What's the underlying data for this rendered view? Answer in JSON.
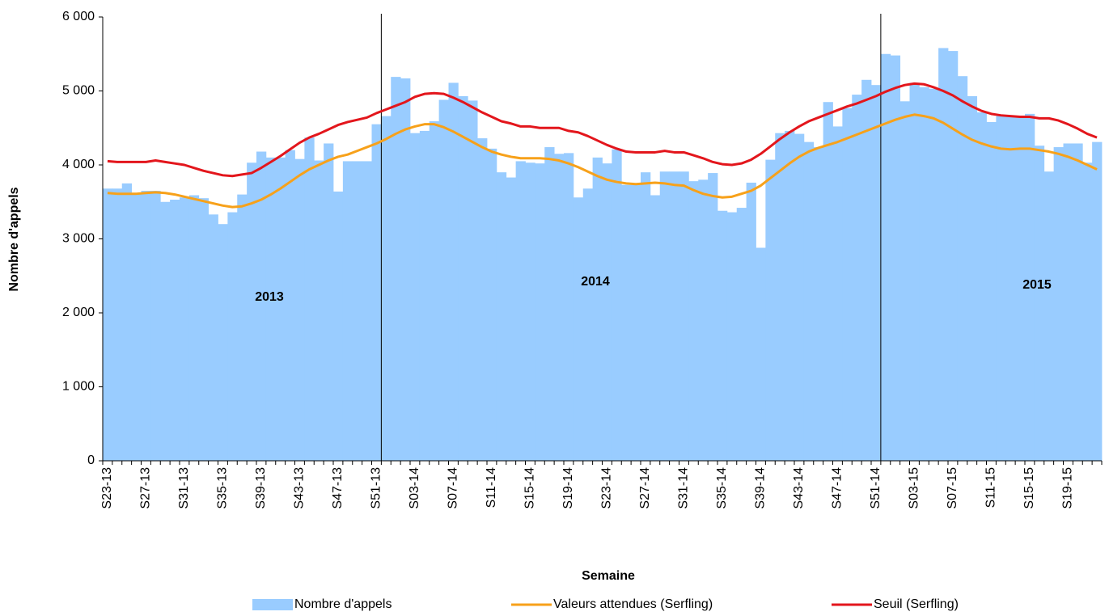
{
  "chart_data": {
    "type": "bar",
    "x_label": "Semaine",
    "y_label": "Nombre d'appels",
    "categories": [
      "S23-13",
      null,
      null,
      null,
      "S27-13",
      null,
      null,
      null,
      "S31-13",
      null,
      null,
      null,
      "S35-13",
      null,
      null,
      null,
      "S39-13",
      null,
      null,
      null,
      "S43-13",
      null,
      null,
      null,
      "S47-13",
      null,
      null,
      null,
      "S51-13",
      null,
      null,
      null,
      "S03-14",
      null,
      null,
      null,
      "S07-14",
      null,
      null,
      null,
      "S11-14",
      null,
      null,
      null,
      "S15-14",
      null,
      null,
      null,
      "S19-14",
      null,
      null,
      null,
      "S23-14",
      null,
      null,
      null,
      "S27-14",
      null,
      null,
      null,
      "S31-14",
      null,
      null,
      null,
      "S35-14",
      null,
      null,
      null,
      "S39-14",
      null,
      null,
      null,
      "S43-14",
      null,
      null,
      null,
      "S47-14",
      null,
      null,
      null,
      "S51-14",
      null,
      null,
      null,
      "S03-15",
      null,
      null,
      null,
      "S07-15",
      null,
      null,
      null,
      "S11-15",
      null,
      null,
      null,
      "S15-15",
      null,
      null,
      null,
      "S19-15",
      null,
      null,
      null
    ],
    "series": [
      {
        "name": "Nombre d'appels",
        "type": "bar",
        "color": "#99ccff",
        "values": [
          3680,
          3680,
          3750,
          3620,
          3650,
          3650,
          3500,
          3530,
          3560,
          3590,
          3550,
          3330,
          3200,
          3360,
          3600,
          4030,
          4180,
          4100,
          4100,
          4200,
          4080,
          4370,
          4060,
          4290,
          3640,
          4050,
          4050,
          4050,
          4550,
          4660,
          5190,
          5170,
          4430,
          4460,
          4590,
          4880,
          5110,
          4930,
          4870,
          4360,
          4220,
          3900,
          3830,
          4050,
          4030,
          4020,
          4240,
          4150,
          4160,
          3560,
          3680,
          4100,
          4020,
          4210,
          3730,
          3730,
          3900,
          3590,
          3910,
          3910,
          3910,
          3780,
          3800,
          3890,
          3380,
          3360,
          3420,
          3760,
          2880,
          4070,
          4430,
          4460,
          4420,
          4310,
          4240,
          4850,
          4520,
          4770,
          4950,
          5150,
          5080,
          5500,
          5480,
          4860,
          5110,
          5050,
          5030,
          5580,
          5540,
          5200,
          4930,
          4710,
          4580,
          4660,
          4660,
          4660,
          4690,
          4260,
          3910,
          4240,
          4290,
          4290,
          4030,
          4310
        ]
      },
      {
        "name": "Valeurs attendues (Serfling)",
        "type": "line",
        "color": "#f7a11a",
        "values": [
          3620,
          3610,
          3610,
          3610,
          3620,
          3630,
          3620,
          3600,
          3570,
          3540,
          3510,
          3480,
          3450,
          3430,
          3440,
          3480,
          3530,
          3600,
          3680,
          3770,
          3860,
          3940,
          4000,
          4060,
          4110,
          4140,
          4190,
          4240,
          4290,
          4350,
          4420,
          4480,
          4520,
          4550,
          4550,
          4510,
          4450,
          4380,
          4310,
          4240,
          4180,
          4140,
          4110,
          4090,
          4090,
          4090,
          4080,
          4060,
          4020,
          3970,
          3910,
          3850,
          3800,
          3770,
          3750,
          3740,
          3750,
          3760,
          3750,
          3730,
          3720,
          3660,
          3610,
          3580,
          3560,
          3570,
          3610,
          3650,
          3720,
          3820,
          3920,
          4020,
          4110,
          4180,
          4230,
          4270,
          4310,
          4360,
          4410,
          4460,
          4510,
          4560,
          4610,
          4650,
          4680,
          4660,
          4630,
          4570,
          4490,
          4410,
          4340,
          4290,
          4250,
          4220,
          4210,
          4220,
          4220,
          4200,
          4180,
          4150,
          4110,
          4060,
          4000,
          3940
        ]
      },
      {
        "name": "Seuil (Serfling)",
        "type": "line",
        "color": "#e3161c",
        "values": [
          4050,
          4040,
          4040,
          4040,
          4040,
          4060,
          4040,
          4020,
          4000,
          3960,
          3920,
          3890,
          3860,
          3850,
          3870,
          3890,
          3960,
          4040,
          4120,
          4210,
          4300,
          4370,
          4420,
          4480,
          4540,
          4580,
          4610,
          4640,
          4700,
          4750,
          4800,
          4850,
          4920,
          4960,
          4970,
          4960,
          4910,
          4850,
          4780,
          4710,
          4650,
          4590,
          4560,
          4520,
          4520,
          4500,
          4500,
          4500,
          4460,
          4440,
          4390,
          4330,
          4270,
          4220,
          4180,
          4170,
          4170,
          4170,
          4190,
          4170,
          4170,
          4130,
          4090,
          4040,
          4010,
          4000,
          4020,
          4070,
          4150,
          4250,
          4350,
          4440,
          4520,
          4590,
          4640,
          4690,
          4740,
          4790,
          4830,
          4880,
          4930,
          4990,
          5040,
          5080,
          5100,
          5090,
          5050,
          5000,
          4940,
          4860,
          4790,
          4730,
          4690,
          4670,
          4660,
          4650,
          4650,
          4630,
          4630,
          4600,
          4550,
          4490,
          4420,
          4370
        ]
      }
    ],
    "annotations": [
      "2013",
      "2014",
      "2015"
    ],
    "ylim": [
      0,
      6000
    ],
    "yticks": [
      0,
      {
        "value": 1000,
        "label": "1 000"
      },
      {
        "value": 2000,
        "label": "2 000"
      },
      {
        "value": 3000,
        "label": "3 000"
      },
      {
        "value": 4000,
        "label": "4 000"
      },
      {
        "value": 5000,
        "label": "5 000"
      },
      {
        "value": 6000,
        "label": "6 000"
      }
    ],
    "grid": false,
    "legend": "bottom"
  }
}
